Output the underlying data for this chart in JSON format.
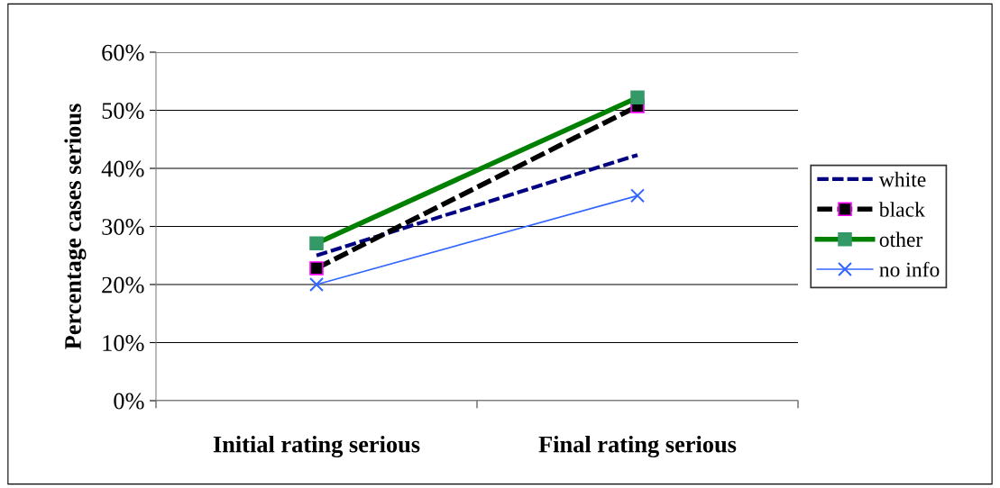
{
  "chart_data": {
    "type": "line",
    "ylabel": "Percentage cases serious",
    "categories": [
      "Initial rating serious",
      "Final rating serious"
    ],
    "ylim": [
      0,
      60
    ],
    "yticks": [
      {
        "value": 0,
        "label": "0%"
      },
      {
        "value": 10,
        "label": "10%"
      },
      {
        "value": 20,
        "label": "20%"
      },
      {
        "value": 30,
        "label": "30%"
      },
      {
        "value": 40,
        "label": "40%"
      },
      {
        "value": 50,
        "label": "50%"
      },
      {
        "value": 60,
        "label": "60%"
      }
    ],
    "grid": "y",
    "legend": "right",
    "series": [
      {
        "name": "white",
        "color": "#000080",
        "values": [
          25,
          42.3
        ],
        "line_style": "dashed",
        "marker": "none"
      },
      {
        "name": "black",
        "color": "#000000",
        "values": [
          22.8,
          50.7
        ],
        "line_style": "dashed",
        "marker": "square",
        "colors": [
          "#ff00ff",
          "#ff00ff"
        ]
      },
      {
        "name": "other",
        "color": "#008000",
        "values": [
          27.1,
          52.2
        ],
        "line_style": "solid",
        "marker": "square",
        "colors": [
          "#339966",
          "#339966"
        ]
      },
      {
        "name": "no info",
        "color": "#3366ff",
        "values": [
          20,
          35.3
        ],
        "line_style": "solid",
        "marker": "cross"
      }
    ]
  }
}
